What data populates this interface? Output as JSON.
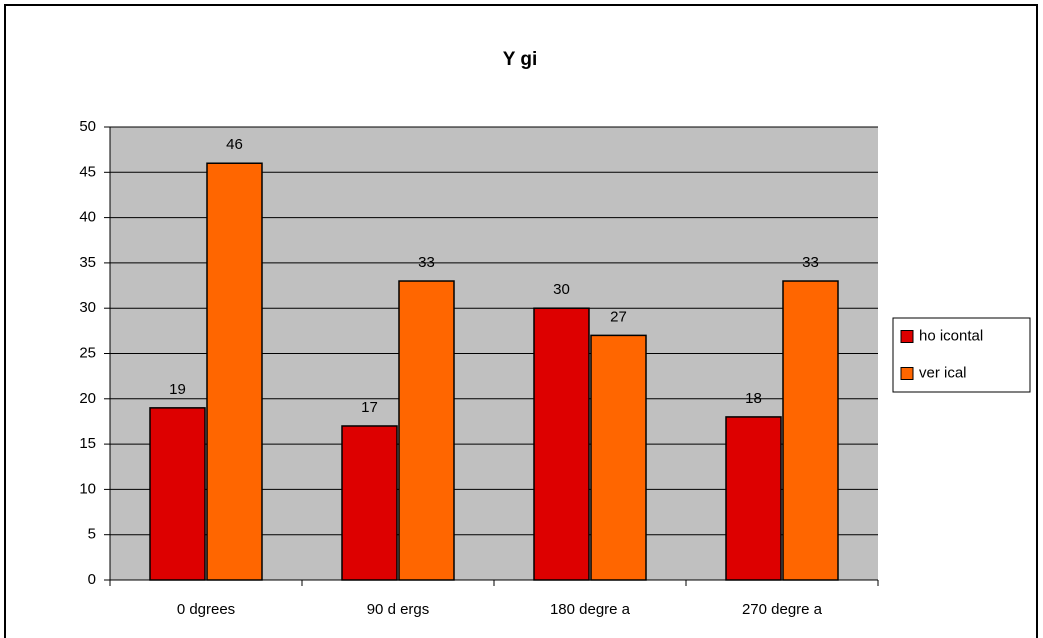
{
  "chart_data": {
    "type": "bar",
    "title": "Y gi",
    "categories": [
      "0  dgrees",
      "90 d ergs",
      "180 degre a",
      "270 degre a"
    ],
    "series": [
      {
        "name": "ho icontal",
        "color": "#dd0000",
        "values": [
          19,
          17,
          30,
          18
        ]
      },
      {
        "name": "ver ical",
        "color": "#ff6600",
        "values": [
          46,
          33,
          27,
          33
        ]
      }
    ],
    "ylim": [
      0,
      50
    ],
    "yticks": [
      0,
      5,
      10,
      15,
      20,
      25,
      30,
      35,
      40,
      45,
      50
    ],
    "grid": true,
    "legend": "right",
    "background": "#c0c0c0"
  }
}
